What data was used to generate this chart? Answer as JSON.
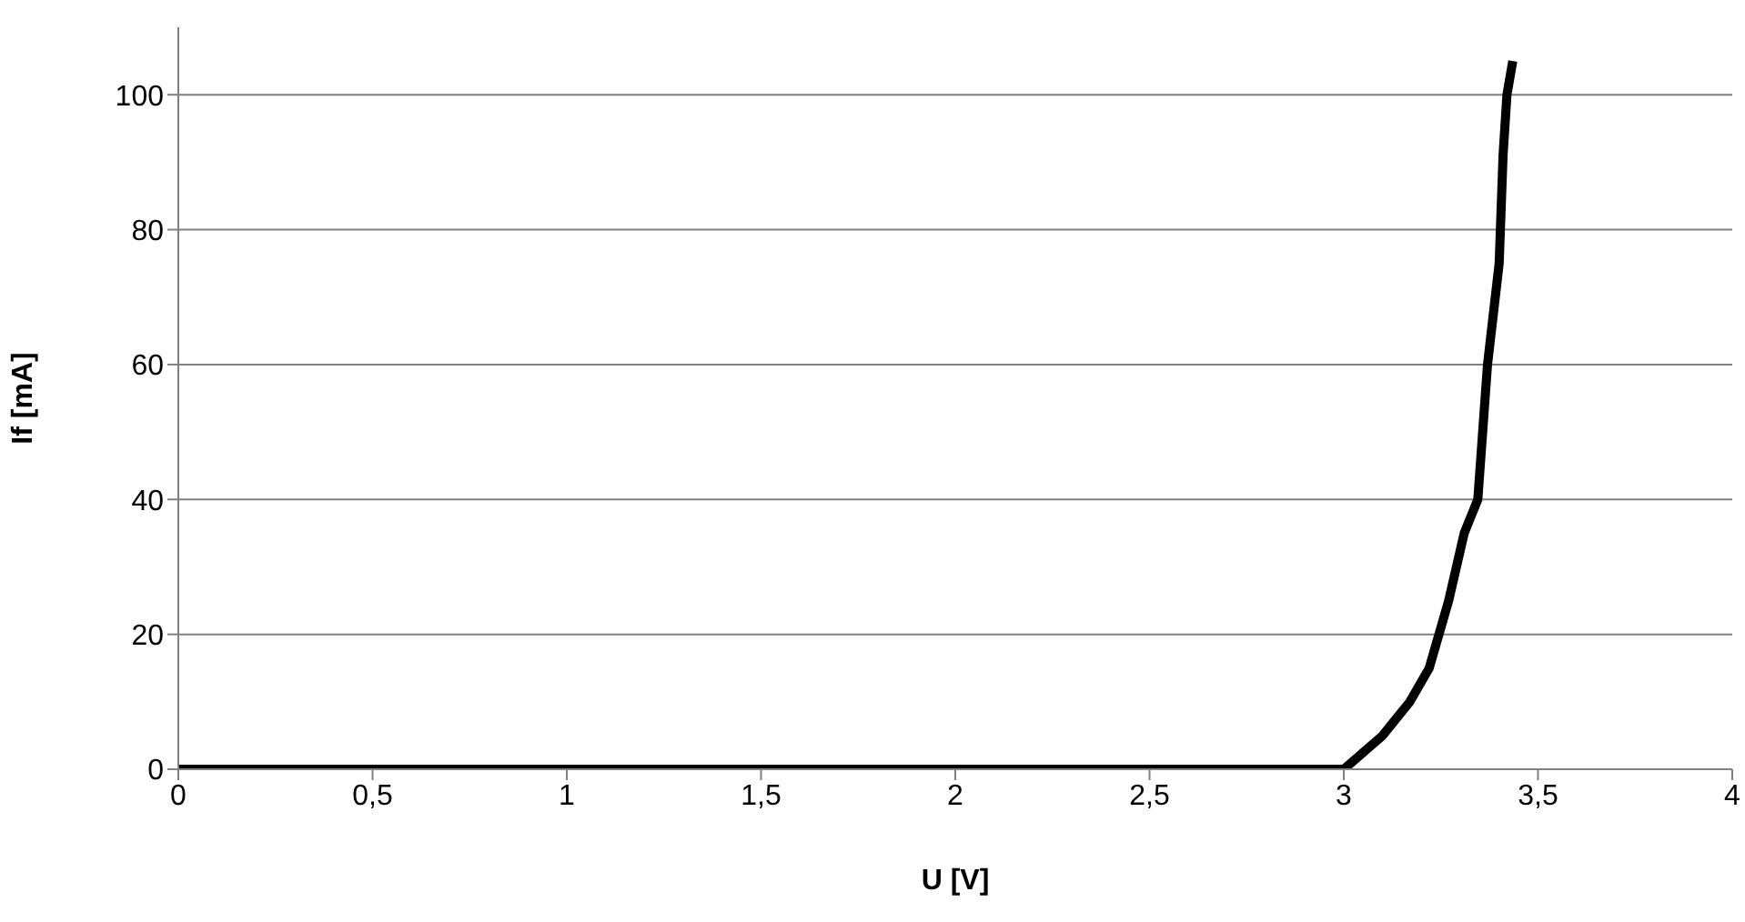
{
  "chart_data": {
    "type": "line",
    "xlabel": "U [V]",
    "ylabel": "If [mA]",
    "series": [
      {
        "color": "#000000",
        "x": [
          0,
          3,
          3.1,
          3.17,
          3.22,
          3.27,
          3.31,
          3.345,
          3.37,
          3.4,
          3.41,
          3.42,
          3.435
        ],
        "values": [
          0,
          0,
          5,
          10,
          15,
          25,
          35,
          40,
          60,
          75,
          91,
          100,
          105
        ]
      }
    ],
    "xlim": [
      0,
      4
    ],
    "xticks": [
      {
        "value": 0,
        "label": "0"
      },
      {
        "value": 0.5,
        "label": "0,5"
      },
      {
        "value": 1,
        "label": "1"
      },
      {
        "value": 1.5,
        "label": "1,5"
      },
      {
        "value": 2,
        "label": "2"
      },
      {
        "value": 2.5,
        "label": "2,5"
      },
      {
        "value": 3,
        "label": "3"
      },
      {
        "value": 3.5,
        "label": "3,5"
      },
      {
        "value": 4,
        "label": "4"
      }
    ],
    "ylim": [
      0,
      110
    ],
    "yticks": [
      0,
      20,
      40,
      60,
      80,
      100
    ],
    "grid": "y",
    "marker": "none",
    "line_style": "solid"
  }
}
